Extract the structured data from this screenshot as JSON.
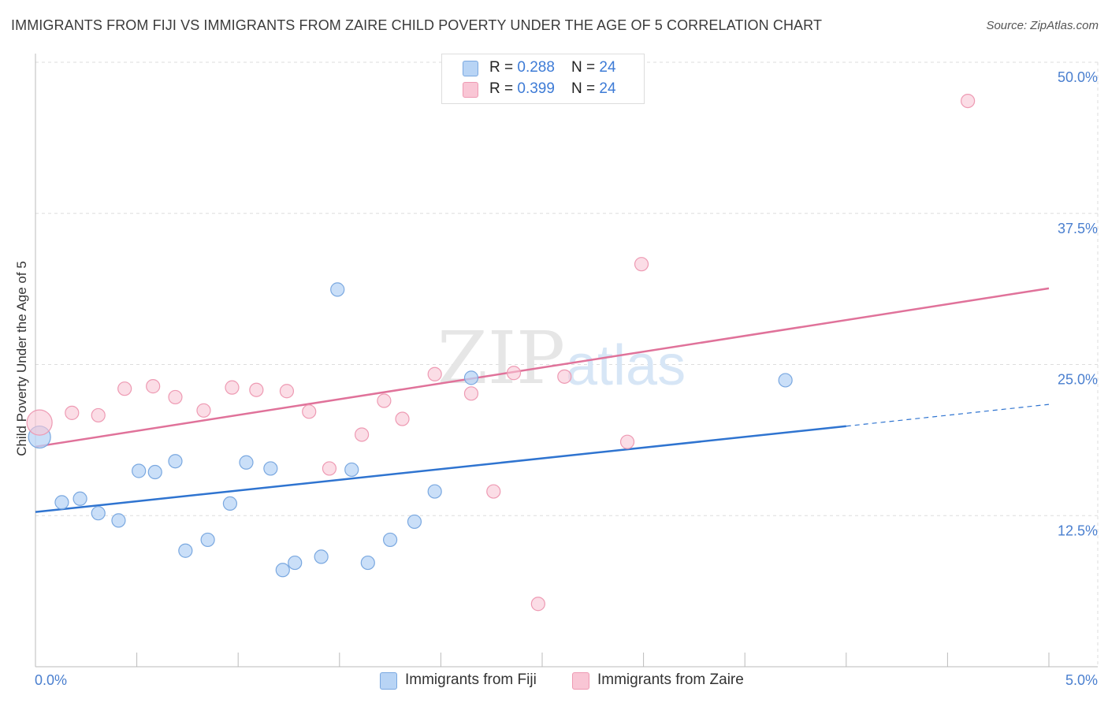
{
  "title": "IMMIGRANTS FROM FIJI VS IMMIGRANTS FROM ZAIRE CHILD POVERTY UNDER THE AGE OF 5 CORRELATION CHART",
  "source": "Source: ZipAtlas.com",
  "watermark": {
    "zip": "ZIP",
    "atlas": "atlas"
  },
  "legend_top": [
    {
      "r_label": "R = ",
      "r_value": "0.288",
      "n_label": "N = ",
      "n_value": "24"
    },
    {
      "r_label": "R = ",
      "r_value": "0.399",
      "n_label": "N = ",
      "n_value": "24"
    }
  ],
  "colors": {
    "fiji_fill": "#b8d4f5",
    "fiji_stroke": "#7aa8e0",
    "fiji_line": "#2f74d0",
    "zaire_fill": "#f9c6d5",
    "zaire_stroke": "#ee9ab3",
    "zaire_line": "#e0729a",
    "axis_text": "#4a7fcf",
    "grid": "#dddddd"
  },
  "chart_data": {
    "type": "scatter",
    "title": "IMMIGRANTS FROM FIJI VS IMMIGRANTS FROM ZAIRE CHILD POVERTY UNDER THE AGE OF 5 CORRELATION CHART",
    "xlabel": "",
    "ylabel": "Child Poverty Under the Age of 5",
    "xlim": [
      0,
      5
    ],
    "ylim": [
      0,
      50
    ],
    "x_tick_labels": [
      "0.0%",
      "5.0%"
    ],
    "y_ticks": [
      12.5,
      25.0,
      37.5,
      50.0
    ],
    "y_tick_labels": [
      "12.5%",
      "25.0%",
      "37.5%",
      "50.0%"
    ],
    "grid": true,
    "legend_position": "bottom",
    "series": [
      {
        "name": "Immigrants from Fiji",
        "r": 0.288,
        "n": 24,
        "trend": {
          "x": [
            0,
            4.0
          ],
          "y": [
            12.8,
            19.9
          ],
          "dashed_to_x": 5.0,
          "dashed_to_y": 21.7
        },
        "points": [
          {
            "x": 0.02,
            "y": 19.0,
            "big": true
          },
          {
            "x": 0.13,
            "y": 13.6
          },
          {
            "x": 0.22,
            "y": 13.9
          },
          {
            "x": 0.31,
            "y": 12.7
          },
          {
            "x": 0.41,
            "y": 12.1
          },
          {
            "x": 0.51,
            "y": 16.2
          },
          {
            "x": 0.59,
            "y": 16.1
          },
          {
            "x": 0.69,
            "y": 17.0
          },
          {
            "x": 0.74,
            "y": 9.6
          },
          {
            "x": 0.85,
            "y": 10.5
          },
          {
            "x": 0.96,
            "y": 13.5
          },
          {
            "x": 1.04,
            "y": 16.9
          },
          {
            "x": 1.16,
            "y": 16.4
          },
          {
            "x": 1.22,
            "y": 8.0
          },
          {
            "x": 1.28,
            "y": 8.6
          },
          {
            "x": 1.41,
            "y": 9.1
          },
          {
            "x": 1.49,
            "y": 31.2
          },
          {
            "x": 1.56,
            "y": 16.3
          },
          {
            "x": 1.64,
            "y": 8.6
          },
          {
            "x": 1.75,
            "y": 10.5
          },
          {
            "x": 1.87,
            "y": 12.0
          },
          {
            "x": 1.97,
            "y": 14.5
          },
          {
            "x": 2.15,
            "y": 23.9
          },
          {
            "x": 3.7,
            "y": 23.7
          }
        ]
      },
      {
        "name": "Immigrants from Zaire",
        "r": 0.399,
        "n": 24,
        "trend": {
          "x": [
            0,
            5.0
          ],
          "y": [
            18.2,
            31.3
          ]
        },
        "points": [
          {
            "x": 0.02,
            "y": 20.2,
            "big": true
          },
          {
            "x": 0.18,
            "y": 21.0
          },
          {
            "x": 0.31,
            "y": 20.8
          },
          {
            "x": 0.44,
            "y": 23.0
          },
          {
            "x": 0.58,
            "y": 23.2
          },
          {
            "x": 0.69,
            "y": 22.3
          },
          {
            "x": 0.83,
            "y": 21.2
          },
          {
            "x": 0.97,
            "y": 23.1
          },
          {
            "x": 1.09,
            "y": 22.9
          },
          {
            "x": 1.24,
            "y": 22.8
          },
          {
            "x": 1.35,
            "y": 21.1
          },
          {
            "x": 1.45,
            "y": 16.4
          },
          {
            "x": 1.61,
            "y": 19.2
          },
          {
            "x": 1.72,
            "y": 22.0
          },
          {
            "x": 1.81,
            "y": 20.5
          },
          {
            "x": 1.97,
            "y": 24.2
          },
          {
            "x": 2.15,
            "y": 22.6
          },
          {
            "x": 2.26,
            "y": 14.5
          },
          {
            "x": 2.36,
            "y": 24.3
          },
          {
            "x": 2.48,
            "y": 5.2
          },
          {
            "x": 2.61,
            "y": 24.0
          },
          {
            "x": 2.92,
            "y": 18.6
          },
          {
            "x": 2.99,
            "y": 33.3
          },
          {
            "x": 4.6,
            "y": 46.8
          }
        ]
      }
    ]
  }
}
